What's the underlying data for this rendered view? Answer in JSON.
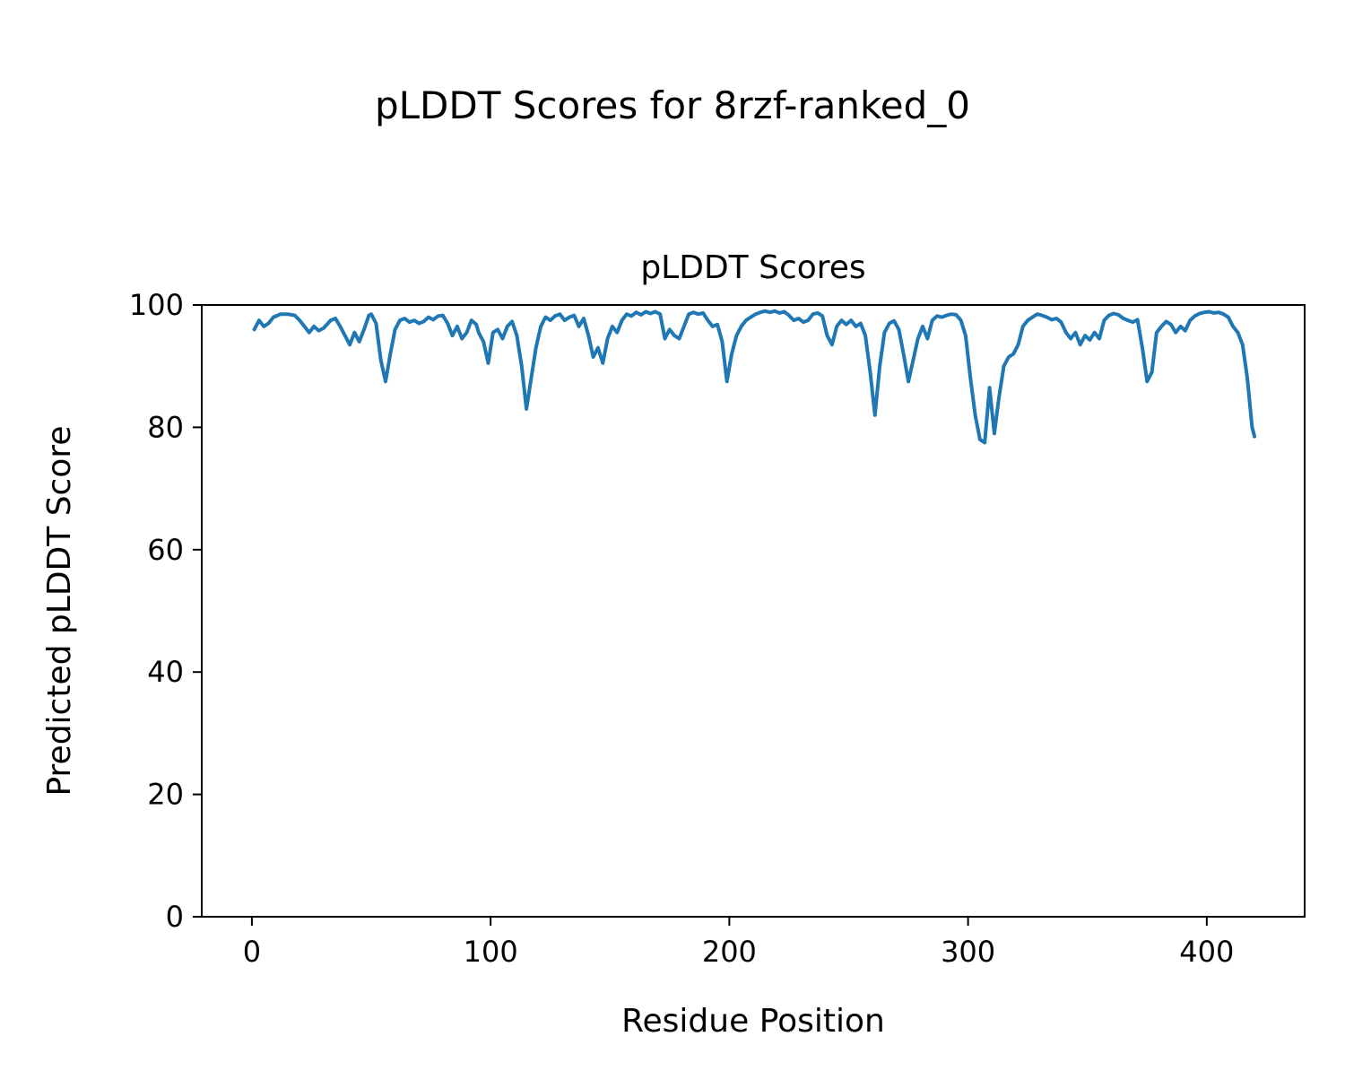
{
  "chart_data": {
    "type": "line",
    "suptitle": "pLDDT Scores for 8rzf-ranked_0",
    "title": "pLDDT Scores",
    "xlabel": "Residue Position",
    "ylabel": "Predicted pLDDT Score",
    "xlim": [
      -21,
      441
    ],
    "ylim": [
      0,
      100
    ],
    "xticks": [
      0,
      100,
      200,
      300,
      400
    ],
    "yticks": [
      0,
      20,
      40,
      60,
      80,
      100
    ],
    "grid": false,
    "legend": null,
    "line_color": "#1f77b4",
    "line_width": 4,
    "series": [
      {
        "name": "pLDDT",
        "x": [
          1,
          3,
          5,
          7,
          9,
          12,
          15,
          18,
          20,
          22,
          24,
          26,
          28,
          30,
          33,
          35,
          37,
          39,
          41,
          43,
          45,
          47,
          49,
          50,
          52,
          54,
          56,
          58,
          60,
          62,
          64,
          66,
          68,
          70,
          72,
          74,
          76,
          78,
          80,
          82,
          84,
          86,
          88,
          90,
          92,
          94,
          95,
          97,
          99,
          101,
          103,
          105,
          107,
          109,
          111,
          113,
          115,
          117,
          119,
          121,
          123,
          125,
          127,
          129,
          131,
          133,
          135,
          137,
          139,
          141,
          143,
          145,
          147,
          149,
          151,
          153,
          155,
          157,
          159,
          161,
          163,
          165,
          167,
          169,
          171,
          173,
          175,
          177,
          179,
          181,
          183,
          185,
          187,
          189,
          191,
          193,
          195,
          197,
          199,
          201,
          203,
          205,
          207,
          209,
          211,
          213,
          215,
          217,
          219,
          221,
          223,
          225,
          227,
          229,
          231,
          233,
          235,
          237,
          239,
          241,
          243,
          245,
          247,
          249,
          251,
          253,
          255,
          257,
          259,
          261,
          263,
          265,
          267,
          269,
          271,
          273,
          275,
          277,
          279,
          281,
          283,
          285,
          287,
          289,
          291,
          293,
          295,
          297,
          299,
          301,
          303,
          305,
          307,
          309,
          311,
          313,
          315,
          317,
          319,
          321,
          323,
          325,
          327,
          329,
          331,
          333,
          335,
          337,
          339,
          341,
          343,
          345,
          347,
          349,
          351,
          353,
          355,
          357,
          359,
          361,
          363,
          365,
          367,
          369,
          371,
          373,
          375,
          377,
          379,
          381,
          383,
          385,
          387,
          389,
          391,
          393,
          395,
          397,
          399,
          401,
          403,
          405,
          407,
          409,
          411,
          413,
          415,
          417,
          419,
          420
        ],
        "y": [
          96,
          97.5,
          96.5,
          97,
          98,
          98.5,
          98.5,
          98.3,
          97.5,
          96.5,
          95.5,
          96.5,
          95.8,
          96.2,
          97.5,
          97.8,
          96.5,
          95,
          93.5,
          95.5,
          94,
          96,
          98.3,
          98.5,
          97,
          91,
          87.5,
          92,
          96,
          97.5,
          97.8,
          97.2,
          97.5,
          97,
          97.3,
          98,
          97.6,
          98.2,
          98.3,
          97,
          95,
          96.5,
          94.5,
          95.5,
          97.5,
          96.8,
          95.5,
          94,
          90.5,
          95.5,
          96,
          94.5,
          96.5,
          97.3,
          95,
          90,
          83,
          88,
          93,
          96.5,
          98,
          97.5,
          98.2,
          98.5,
          97.5,
          98,
          98.3,
          96.5,
          97.8,
          95,
          91.5,
          93,
          90.5,
          94.5,
          96.5,
          95.5,
          97.5,
          98.5,
          98.2,
          98.8,
          98.4,
          98.9,
          98.6,
          98.9,
          98.5,
          94.5,
          96,
          95,
          94.5,
          96.5,
          98.5,
          98.8,
          98.5,
          98.7,
          97.5,
          96.5,
          96.8,
          94,
          87.5,
          92,
          95,
          96.5,
          97.5,
          98,
          98.5,
          98.8,
          99,
          98.8,
          99,
          98.7,
          98.9,
          98.3,
          97.5,
          97.8,
          97.2,
          97.5,
          98.5,
          98.7,
          98.2,
          95,
          93.5,
          96.5,
          97.5,
          96.8,
          97.5,
          96.5,
          97,
          95,
          89,
          82,
          90,
          95.5,
          97,
          97.4,
          96,
          92,
          87.5,
          91,
          94.5,
          96.5,
          94.5,
          97.5,
          98.2,
          98,
          98.3,
          98.5,
          98.4,
          97.5,
          95,
          88,
          82,
          78,
          77.5,
          86.5,
          79,
          85,
          90,
          91.5,
          92,
          93.5,
          96.5,
          97.5,
          98,
          98.5,
          98.3,
          98,
          97.6,
          97.8,
          97.2,
          95.5,
          94.5,
          95.5,
          93.5,
          95,
          94.3,
          95.5,
          94.5,
          97.5,
          98.3,
          98.6,
          98.4,
          97.8,
          97.5,
          97.2,
          97.6,
          93,
          87.5,
          89,
          95.5,
          96.5,
          97.3,
          96.8,
          95.5,
          96.5,
          95.8,
          97.5,
          98.2,
          98.6,
          98.8,
          98.9,
          98.7,
          98.8,
          98.5,
          98,
          96.5,
          95.5,
          93.5,
          88,
          80,
          78.5
        ]
      }
    ]
  }
}
